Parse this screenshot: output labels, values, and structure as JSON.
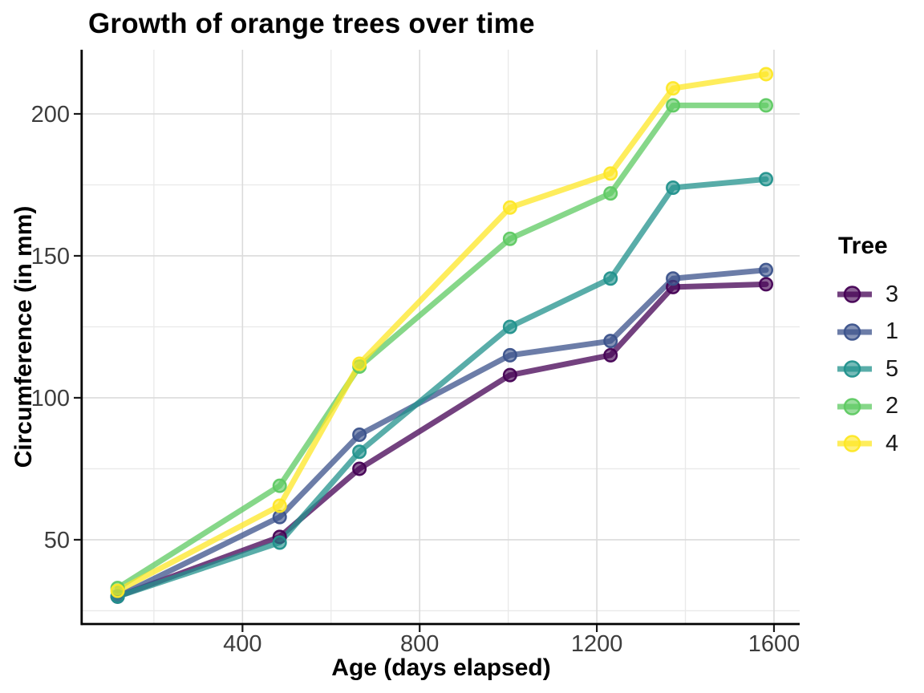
{
  "chart_data": {
    "type": "line",
    "title": "Growth of orange trees over time",
    "xlabel": "Age (days elapsed)",
    "ylabel": "Circumference (in mm)",
    "legend_title": "Tree",
    "legend_position": "right",
    "x": [
      118,
      484,
      664,
      1004,
      1231,
      1372,
      1582
    ],
    "series": [
      {
        "name": "3",
        "color": "#440154",
        "values": [
          30,
          51,
          75,
          108,
          115,
          139,
          140
        ]
      },
      {
        "name": "1",
        "color": "#3B528B",
        "values": [
          30,
          58,
          87,
          115,
          120,
          142,
          145
        ]
      },
      {
        "name": "5",
        "color": "#21918C",
        "values": [
          30,
          49,
          81,
          125,
          142,
          174,
          177
        ]
      },
      {
        "name": "2",
        "color": "#5EC962",
        "values": [
          33,
          69,
          111,
          156,
          172,
          203,
          203
        ]
      },
      {
        "name": "4",
        "color": "#FDE725",
        "values": [
          32,
          62,
          112,
          167,
          179,
          209,
          214
        ]
      }
    ],
    "xlim": [
      39,
      1658
    ],
    "ylim": [
      20.6,
      222.6
    ],
    "x_ticks": [
      400,
      800,
      1200,
      1600
    ],
    "y_ticks": [
      50,
      100,
      150,
      200
    ],
    "x_minor_ticks": [
      200,
      600,
      1000,
      1400
    ],
    "y_minor_ticks": [
      25,
      75,
      125,
      175
    ],
    "grid": true,
    "colors": {
      "background": "#FFFFFF",
      "grid_major": "#DBDBDB",
      "grid_minor": "#E9E9E9",
      "axis_line": "#000000",
      "tick_mark": "#1A1A1A",
      "tick_label": "#3D3D3D",
      "title_text": "#000000"
    }
  }
}
